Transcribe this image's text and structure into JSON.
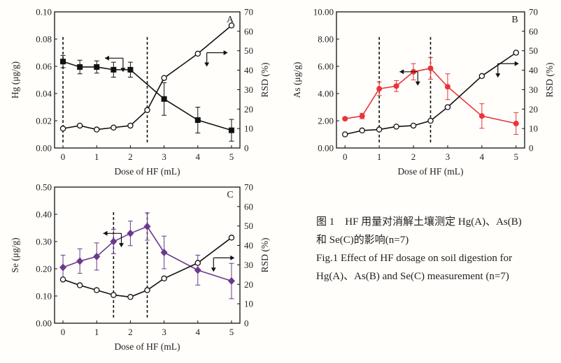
{
  "caption": {
    "zh_line1": "图 1　HF 用量对消解土壤测定 Hg(A)、As(B)",
    "zh_line2": "和 Se(C)的影响(n=7)",
    "en_line1": "Fig.1 Effect of HF dosage on soil digestion for",
    "en_line2": "Hg(A)、As(B) and Se(C) measurement (n=7)"
  },
  "colors": {
    "black": "#111111",
    "as_red": "#e8343a",
    "se_purple": "#6a3a8c"
  },
  "chart_data": [
    {
      "panel": "A",
      "type": "line",
      "xlabel": "Dose of HF (mL)",
      "ylabel": "Hg (μg/g)",
      "y2label": "RSD (%)",
      "x_ticks": [
        0,
        1,
        2,
        3,
        4,
        5
      ],
      "xlim": [
        -0.25,
        5.25
      ],
      "y_ticks": [
        "0.00",
        "0.02",
        "0.04",
        "0.06",
        "0.08",
        "0.10"
      ],
      "ylim": [
        0,
        0.1
      ],
      "y2_ticks": [
        "0",
        "10",
        "20",
        "30",
        "40",
        "50",
        "60",
        "70"
      ],
      "y2lim": [
        0,
        70
      ],
      "vlines": [
        0,
        2.5
      ],
      "series": [
        {
          "axis": "left",
          "marker": "square",
          "color": "#111111",
          "x": [
            0,
            0.5,
            1,
            1.5,
            2,
            3,
            4,
            5
          ],
          "y": [
            0.0635,
            0.0595,
            0.0595,
            0.0575,
            0.0575,
            0.036,
            0.0205,
            0.013
          ],
          "err": [
            0.0045,
            0.005,
            0.0045,
            0.0055,
            0.0055,
            0.012,
            0.0095,
            0.008
          ]
        },
        {
          "axis": "right",
          "marker": "open-circle",
          "color": "#111111",
          "x": [
            0,
            0.5,
            1,
            1.5,
            2,
            2.5,
            3,
            4,
            5
          ],
          "y": [
            10,
            11.5,
            9.5,
            10.5,
            11.5,
            19.5,
            36,
            48.5,
            63
          ]
        }
      ],
      "arrows": [
        "left",
        "right"
      ]
    },
    {
      "panel": "B",
      "type": "line",
      "xlabel": "Dose of HF (mL)",
      "ylabel": "As (μg/g)",
      "y2label": "RSD (%)",
      "x_ticks": [
        0,
        1,
        2,
        3,
        4,
        5
      ],
      "xlim": [
        -0.25,
        5.25
      ],
      "y_ticks": [
        "0.00",
        "2.00",
        "4.00",
        "6.00",
        "8.00",
        "10.00"
      ],
      "ylim": [
        0,
        10
      ],
      "y2_ticks": [
        "0",
        "10",
        "20",
        "30",
        "40",
        "50",
        "60",
        "70"
      ],
      "y2lim": [
        0,
        70
      ],
      "vlines": [
        1,
        2.5
      ],
      "series": [
        {
          "axis": "left",
          "marker": "circle",
          "color": "#e8343a",
          "x": [
            0,
            0.5,
            1,
            1.5,
            2,
            2.5,
            3,
            4,
            5
          ],
          "y": [
            2.15,
            2.35,
            4.35,
            4.55,
            5.6,
            5.85,
            4.5,
            2.35,
            1.8
          ],
          "err": [
            0.1,
            0.2,
            0.5,
            0.4,
            0.6,
            0.8,
            0.95,
            0.9,
            0.8
          ]
        },
        {
          "axis": "right",
          "marker": "open-circle",
          "color": "#111111",
          "x": [
            0,
            0.5,
            1,
            1.5,
            2,
            2.5,
            3,
            4,
            5
          ],
          "y": [
            7,
            9,
            9.5,
            11,
            11.5,
            14,
            21,
            37,
            49
          ]
        }
      ],
      "arrows": [
        "left",
        "right"
      ]
    },
    {
      "panel": "C",
      "type": "line",
      "xlabel": "Dose of HF (mL)",
      "ylabel": "Se (μg/g)",
      "y2label": "RSD (%)",
      "x_ticks": [
        0,
        1,
        2,
        3,
        4,
        5
      ],
      "xlim": [
        -0.25,
        5.25
      ],
      "y_ticks": [
        "0.00",
        "0.10",
        "0.20",
        "0.30",
        "0.40",
        "0.50"
      ],
      "ylim": [
        0,
        0.5
      ],
      "y2_ticks": [
        "0",
        "10",
        "20",
        "30",
        "40",
        "50",
        "60",
        "70"
      ],
      "y2lim": [
        0,
        70
      ],
      "vlines": [
        1.5,
        2.5
      ],
      "series": [
        {
          "axis": "left",
          "marker": "diamond",
          "color": "#6a3a8c",
          "x": [
            0,
            0.5,
            1,
            1.5,
            2,
            2.5,
            3,
            4,
            5
          ],
          "y": [
            0.205,
            0.228,
            0.245,
            0.3,
            0.33,
            0.355,
            0.26,
            0.195,
            0.155
          ],
          "err": [
            0.045,
            0.045,
            0.05,
            0.045,
            0.045,
            0.05,
            0.06,
            0.055,
            0.065
          ]
        },
        {
          "axis": "right",
          "marker": "open-circle",
          "color": "#111111",
          "x": [
            0,
            0.5,
            1,
            1.5,
            2,
            2.5,
            3,
            4,
            5
          ],
          "y": [
            22.5,
            19.5,
            17,
            14.5,
            13.5,
            17,
            23,
            31,
            44
          ]
        }
      ],
      "arrows": [
        "left",
        "right"
      ]
    }
  ]
}
